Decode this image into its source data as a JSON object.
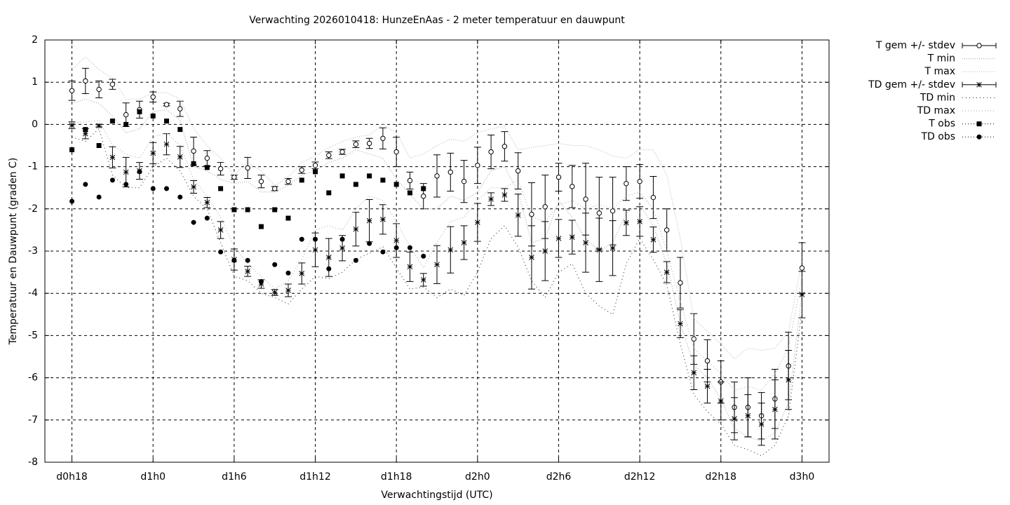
{
  "chart_data": {
    "type": "errorbar-line",
    "title": "Verwachting 2026010418: HunzeEnAas - 2 meter temperatuur en dauwpunt",
    "xlabel": "Verwachtingstijd (UTC)",
    "ylabel": "Temperatuur en Dauwpunt (graden C)",
    "xlim": [
      16,
      74
    ],
    "ylim": [
      -8,
      2
    ],
    "xticks": [
      {
        "value": 18,
        "label": "d0h18"
      },
      {
        "value": 24,
        "label": "d1h0"
      },
      {
        "value": 30,
        "label": "d1h6"
      },
      {
        "value": 36,
        "label": "d1h12"
      },
      {
        "value": 42,
        "label": "d1h18"
      },
      {
        "value": 48,
        "label": "d2h0"
      },
      {
        "value": 54,
        "label": "d2h6"
      },
      {
        "value": 60,
        "label": "d2h12"
      },
      {
        "value": 66,
        "label": "d2h18"
      },
      {
        "value": 72,
        "label": "d3h0"
      }
    ],
    "yticks": [
      -8,
      -7,
      -6,
      -5,
      -4,
      -3,
      -2,
      -1,
      0,
      1,
      2
    ],
    "grid": true,
    "legend": "outside-right",
    "x": [
      18,
      19,
      20,
      21,
      22,
      23,
      24,
      25,
      26,
      27,
      28,
      29,
      30,
      31,
      32,
      33,
      34,
      35,
      36,
      37,
      38,
      39,
      40,
      41,
      42,
      43,
      44,
      45,
      46,
      47,
      48,
      49,
      50,
      51,
      52,
      53,
      54,
      55,
      56,
      57,
      58,
      59,
      60,
      61,
      62,
      63,
      64,
      65,
      66,
      67,
      68,
      69,
      70,
      71,
      72
    ],
    "series": [
      {
        "name": "T gem +/- stdev",
        "color": "#000000",
        "style": "errorbar",
        "marker": "circle-open",
        "values": [
          0.8,
          1.03,
          0.83,
          0.95,
          0.23,
          0.35,
          0.65,
          0.47,
          0.37,
          -0.63,
          -0.8,
          -1.05,
          -1.25,
          -1.03,
          -1.35,
          -1.52,
          -1.35,
          -1.08,
          -0.97,
          -0.73,
          -0.65,
          -0.47,
          -0.45,
          -0.33,
          -0.65,
          -1.33,
          -1.7,
          -1.22,
          -1.13,
          -1.35,
          -0.97,
          -0.65,
          -0.52,
          -1.1,
          -2.13,
          -1.95,
          -1.25,
          -1.47,
          -1.77,
          -2.1,
          -2.05,
          -1.4,
          -1.35,
          -1.73,
          -2.5,
          -3.75,
          -5.08,
          -5.6,
          -6.1,
          -6.7,
          -6.7,
          -6.9,
          -6.5,
          -5.72,
          -3.4
        ],
        "errors": [
          0.23,
          0.3,
          0.2,
          0.12,
          0.28,
          0.2,
          0.12,
          0.03,
          0.18,
          0.33,
          0.18,
          0.15,
          0.05,
          0.25,
          0.15,
          0.05,
          0.07,
          0.08,
          0.08,
          0.08,
          0.06,
          0.08,
          0.12,
          0.25,
          0.35,
          0.2,
          0.3,
          0.5,
          0.45,
          0.5,
          0.43,
          0.4,
          0.35,
          0.43,
          0.75,
          0.75,
          0.33,
          0.5,
          0.85,
          0.85,
          0.8,
          0.4,
          0.4,
          0.5,
          0.5,
          0.6,
          0.6,
          0.5,
          0.5,
          0.6,
          0.7,
          0.55,
          0.7,
          0.8,
          0.6
        ]
      },
      {
        "name": "T min",
        "color": "#b0b0b0",
        "style": "line",
        "dash": "1,2",
        "values": [
          0.5,
          0.6,
          0.5,
          0.2,
          -0.2,
          -0.1,
          0.3,
          0.35,
          0.1,
          -1.0,
          -1.1,
          -1.3,
          -1.4,
          -1.35,
          -1.6,
          -1.6,
          -1.45,
          -1.2,
          -1.1,
          -0.9,
          -0.8,
          -0.6,
          -0.7,
          -0.8,
          -1.3,
          -1.65,
          -2.0,
          -2.0,
          -1.7,
          -1.8,
          -1.6,
          -1.1,
          -1.0,
          -1.6,
          -2.8,
          -2.7,
          -1.8,
          -2.2,
          -2.7,
          -3.0,
          -2.8,
          -2.1,
          -1.9,
          -2.4,
          -3.3,
          -4.7,
          -5.7,
          -6.0,
          -6.5,
          -7.2,
          -7.4,
          -7.5,
          -7.3,
          -6.6,
          -4.0
        ]
      },
      {
        "name": "T max",
        "color": "#c0c0c0",
        "style": "line",
        "dash": "1,2",
        "values": [
          1.3,
          1.6,
          1.3,
          1.1,
          0.6,
          0.6,
          0.75,
          0.75,
          0.6,
          -0.1,
          -0.5,
          -0.8,
          -1.2,
          -0.9,
          -1.1,
          -1.45,
          -1.25,
          -0.9,
          -0.75,
          -0.55,
          -0.4,
          -0.3,
          -0.25,
          0.0,
          -0.2,
          -0.8,
          -0.7,
          -0.5,
          -0.35,
          -0.4,
          -0.2,
          -0.1,
          -0.05,
          -0.6,
          -0.55,
          -0.5,
          -0.45,
          -0.5,
          -0.5,
          -0.6,
          -0.75,
          -0.8,
          -0.6,
          -0.6,
          -1.2,
          -2.7,
          -4.6,
          -4.9,
          -5.2,
          -5.55,
          -5.3,
          -5.35,
          -5.3,
          -4.9,
          -3.2
        ]
      },
      {
        "name": "TD gem +/- stdev",
        "color": "#000000",
        "style": "errorbar",
        "marker": "star",
        "values": [
          -0.02,
          -0.22,
          -0.03,
          -0.78,
          -1.13,
          -1.1,
          -0.68,
          -0.47,
          -0.77,
          -1.48,
          -1.85,
          -2.5,
          -3.2,
          -3.48,
          -3.78,
          -3.98,
          -3.93,
          -3.53,
          -2.97,
          -3.15,
          -2.93,
          -2.48,
          -2.28,
          -2.25,
          -2.75,
          -3.37,
          -3.68,
          -3.32,
          -2.97,
          -2.8,
          -2.32,
          -1.77,
          -1.67,
          -2.15,
          -3.15,
          -3.0,
          -2.7,
          -2.67,
          -2.8,
          -2.97,
          -2.93,
          -2.33,
          -2.3,
          -2.73,
          -3.5,
          -4.72,
          -5.88,
          -6.2,
          -6.55,
          -6.97,
          -6.9,
          -7.1,
          -6.75,
          -6.05,
          -4.03
        ],
        "errors": [
          0.08,
          0.12,
          0.03,
          0.25,
          0.35,
          0.2,
          0.25,
          0.25,
          0.25,
          0.15,
          0.12,
          0.2,
          0.25,
          0.12,
          0.1,
          0.07,
          0.15,
          0.25,
          0.4,
          0.45,
          0.3,
          0.4,
          0.5,
          0.35,
          0.4,
          0.35,
          0.15,
          0.45,
          0.55,
          0.4,
          0.45,
          0.15,
          0.15,
          0.5,
          0.75,
          0.7,
          0.45,
          0.4,
          0.7,
          0.75,
          0.65,
          0.3,
          0.35,
          0.3,
          0.25,
          0.33,
          0.4,
          0.4,
          0.45,
          0.5,
          0.5,
          0.5,
          0.7,
          0.7,
          0.55
        ]
      },
      {
        "name": "TD min",
        "color": "#404040",
        "style": "line",
        "dash": "1,4",
        "values": [
          -0.3,
          -0.4,
          -0.1,
          -1.2,
          -1.5,
          -1.5,
          -1.0,
          -0.8,
          -1.1,
          -1.7,
          -2.0,
          -2.8,
          -3.6,
          -3.7,
          -4.0,
          -4.1,
          -4.25,
          -3.9,
          -3.6,
          -3.65,
          -3.5,
          -3.2,
          -3.05,
          -2.9,
          -3.4,
          -3.9,
          -3.85,
          -4.1,
          -3.9,
          -4.05,
          -3.5,
          -2.7,
          -2.4,
          -2.9,
          -3.7,
          -4.1,
          -3.5,
          -3.3,
          -4.0,
          -4.3,
          -4.5,
          -3.3,
          -2.7,
          -3.2,
          -3.8,
          -5.2,
          -6.4,
          -6.8,
          -7.1,
          -7.6,
          -7.7,
          -7.85,
          -7.6,
          -6.9,
          -4.4
        ]
      },
      {
        "name": "TD max",
        "color": "#b0b0b0",
        "style": "line",
        "dash": "1,3",
        "values": [
          0.05,
          0.05,
          0.1,
          -0.5,
          -0.7,
          -0.8,
          -0.3,
          -0.2,
          -0.5,
          -1.3,
          -1.7,
          -2.2,
          -2.9,
          -3.3,
          -3.6,
          -3.9,
          -3.7,
          -3.2,
          -2.5,
          -2.4,
          -2.5,
          -2.0,
          -1.7,
          -1.8,
          -2.3,
          -2.9,
          -3.4,
          -2.8,
          -2.3,
          -2.2,
          -1.8,
          -1.5,
          -1.5,
          -1.3,
          -2.2,
          -2.3,
          -1.9,
          -1.8,
          -2.0,
          -1.9,
          -2.0,
          -1.7,
          -1.6,
          -2.0,
          -3.0,
          -4.2,
          -5.3,
          -5.6,
          -5.9,
          -6.3,
          -6.2,
          -6.3,
          -5.9,
          -5.3,
          -3.6
        ]
      },
      {
        "name": "T obs",
        "color": "#000000",
        "style": "points",
        "marker": "square",
        "values": [
          -0.6,
          -0.12,
          -0.5,
          0.08,
          0.0,
          0.3,
          0.2,
          0.08,
          -0.12,
          -0.93,
          -1.02,
          -1.52,
          -2.02,
          -2.02,
          -2.42,
          -2.02,
          -2.22,
          -1.32,
          -1.12,
          -1.62,
          -1.22,
          -1.42,
          -1.22,
          -1.32,
          -1.42,
          -1.62,
          -1.52,
          null,
          null,
          null,
          null,
          null,
          null,
          null,
          null,
          null,
          null,
          null,
          null,
          null,
          null,
          null,
          null,
          null,
          null,
          null,
          null,
          null,
          null,
          null,
          null,
          null,
          null,
          null,
          null
        ]
      },
      {
        "name": "TD obs",
        "color": "#000000",
        "style": "points",
        "marker": "dot",
        "values": [
          -1.82,
          -1.42,
          -1.72,
          -1.32,
          -1.42,
          -1.12,
          -1.52,
          -1.52,
          -1.72,
          -2.32,
          -2.22,
          -3.02,
          -3.22,
          -3.22,
          -3.72,
          -3.32,
          -3.52,
          -2.72,
          -2.72,
          -3.42,
          -2.72,
          -3.22,
          -2.82,
          -3.02,
          -2.92,
          -2.92,
          -3.12,
          null,
          null,
          null,
          null,
          null,
          null,
          null,
          null,
          null,
          null,
          null,
          null,
          null,
          null,
          null,
          null,
          null,
          null,
          null,
          null,
          null,
          null,
          null,
          null,
          null,
          null,
          null,
          null
        ]
      }
    ]
  }
}
